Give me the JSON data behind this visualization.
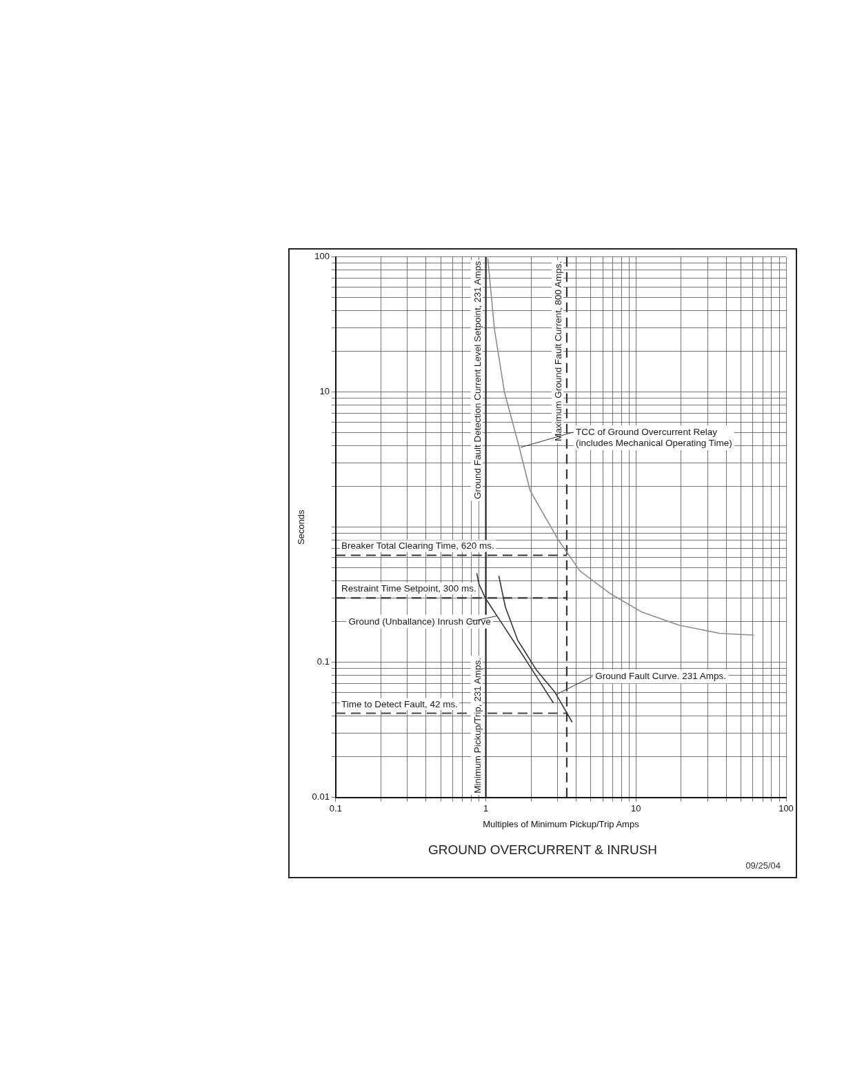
{
  "chart_data": {
    "type": "line",
    "title": "GROUND OVERCURRENT & INRUSH",
    "xlabel": "Multiples of Minimum Pickup/Trip Amps",
    "ylabel": "Seconds",
    "log": "xy",
    "grid": true,
    "legend": false,
    "marker": "none",
    "line_style": "solid",
    "xlim": [
      0.1,
      100
    ],
    "ylim": [
      0.01,
      100
    ],
    "xticks": [
      0.1,
      {
        "value": 0.2,
        "label": null
      },
      {
        "value": 0.3,
        "label": null
      },
      {
        "value": 0.4,
        "label": null
      },
      {
        "value": 0.5,
        "label": null
      },
      {
        "value": 0.6,
        "label": null
      },
      {
        "value": 0.7,
        "label": null
      },
      {
        "value": 0.8,
        "label": null
      },
      {
        "value": 0.9,
        "label": null
      },
      1,
      {
        "value": 2,
        "label": null
      },
      {
        "value": 3,
        "label": null
      },
      {
        "value": 4,
        "label": null
      },
      {
        "value": 5,
        "label": null
      },
      {
        "value": 6,
        "label": null
      },
      {
        "value": 7,
        "label": null
      },
      {
        "value": 8,
        "label": null
      },
      {
        "value": 9,
        "label": null
      },
      10,
      {
        "value": 20,
        "label": null
      },
      {
        "value": 30,
        "label": null
      },
      {
        "value": 40,
        "label": null
      },
      {
        "value": 50,
        "label": null
      },
      {
        "value": 60,
        "label": null
      },
      {
        "value": 70,
        "label": null
      },
      {
        "value": 80,
        "label": null
      },
      {
        "value": 90,
        "label": null
      },
      100
    ],
    "yticks": [
      0.01,
      {
        "value": 0.02,
        "label": null
      },
      {
        "value": 0.03,
        "label": null
      },
      {
        "value": 0.04,
        "label": null
      },
      {
        "value": 0.05,
        "label": null
      },
      {
        "value": 0.06,
        "label": null
      },
      {
        "value": 0.07,
        "label": null
      },
      {
        "value": 0.08,
        "label": null
      },
      {
        "value": 0.09,
        "label": null
      },
      0.1,
      {
        "value": 0.2,
        "label": null
      },
      {
        "value": 0.3,
        "label": null
      },
      {
        "value": 0.4,
        "label": null
      },
      {
        "value": 0.5,
        "label": null
      },
      {
        "value": 0.6,
        "label": null
      },
      {
        "value": 0.7,
        "label": null
      },
      {
        "value": 0.8,
        "label": null
      },
      {
        "value": 0.9,
        "label": null
      },
      {
        "value": 1,
        "label": null
      },
      {
        "value": 2,
        "label": null
      },
      {
        "value": 3,
        "label": null
      },
      {
        "value": 4,
        "label": null
      },
      {
        "value": 5,
        "label": null
      },
      {
        "value": 6,
        "label": null
      },
      {
        "value": 7,
        "label": null
      },
      {
        "value": 8,
        "label": null
      },
      {
        "value": 9,
        "label": null
      },
      10,
      {
        "value": 20,
        "label": null
      },
      {
        "value": 30,
        "label": null
      },
      {
        "value": 40,
        "label": null
      },
      {
        "value": 50,
        "label": null
      },
      {
        "value": 60,
        "label": null
      },
      {
        "value": 70,
        "label": null
      },
      {
        "value": 80,
        "label": null
      },
      {
        "value": 90,
        "label": null
      },
      100
    ],
    "series": [
      {
        "color": "#8c8c8c",
        "x": [
          1.03,
          1.14,
          1.33,
          1.67,
          1.97,
          3.03,
          4.23,
          6.82,
          11.0,
          19.5,
          36.2,
          61.2
        ],
        "values": [
          98,
          29.4,
          10,
          3.9,
          1.87,
          0.81,
          0.475,
          0.32,
          0.235,
          0.188,
          0.164,
          0.159
        ]
      },
      {
        "color": "#333333",
        "x": [
          0.87,
          0.9,
          0.99,
          1.28,
          1.79,
          2.82
        ],
        "values": [
          0.457,
          0.38,
          0.3,
          0.194,
          0.11,
          0.05
        ]
      },
      {
        "color": "#333333",
        "x": [
          1.22,
          1.35,
          1.63,
          2.17,
          2.89,
          3.76
        ],
        "values": [
          0.437,
          0.256,
          0.146,
          0.088,
          0.06,
          0.036
        ]
      }
    ],
    "ref_lines": [
      {
        "axis": "y",
        "value": 0.62,
        "label": "Breaker Total Clearing Time, 620 ms.",
        "color": "#333333",
        "line_style": "dashed"
      },
      {
        "axis": "y",
        "value": 0.3,
        "label": "Restraint Time Setpoint, 300 ms.",
        "color": "#333333",
        "line_style": "dashed"
      },
      {
        "axis": "y",
        "value": 0.042,
        "label": "Time to Detect Fault, 42 ms.",
        "color": "#555555",
        "line_style": "dashed"
      },
      {
        "axis": "x",
        "value": 1,
        "label": "Minimum Pickup/Trip, 231 Amps.",
        "color": "#222222",
        "line_style": "solid"
      },
      {
        "axis": "x",
        "value": 3.46,
        "label": "Maximum Ground Fault Current, 800 Amps.",
        "color": "#333333",
        "line_style": "dashed"
      }
    ],
    "annotations": [
      {
        "text": "Ground Fault Detection Current Level Setpoint, 231 Amps",
        "x": 1,
        "y": 100
      },
      {
        "text": "TCC of Ground Overcurrent Relay\n(includes Mechanical Operating Time)",
        "x": 1.67,
        "y": 3.9
      },
      {
        "text": "Ground (Unballance) Inrush Curve",
        "x": 1.2,
        "y": 0.22
      },
      {
        "text": "Ground Fault Curve. 231 Amps.",
        "x": 2.9,
        "y": 0.058
      },
      "09/25/04"
    ]
  }
}
